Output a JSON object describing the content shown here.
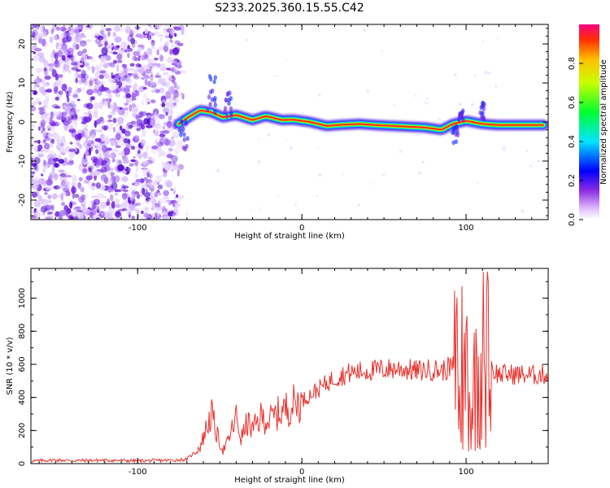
{
  "title": "S233.2025.360.15.55.C42",
  "spectrogram": {
    "type": "heatmap",
    "xlabel": "Height of straight line (km)",
    "ylabel": "Frequency (Hz)",
    "xlim": [
      -165,
      150
    ],
    "ylim": [
      -25,
      25
    ],
    "x_ticks": [
      -100,
      0,
      100
    ],
    "y_ticks": [
      20,
      10,
      0,
      -10,
      -20
    ],
    "ridge": {
      "x": [
        -75,
        -68,
        -62,
        -55,
        -48,
        -40,
        -30,
        -22,
        -12,
        -5,
        5,
        15,
        25,
        35,
        45,
        55,
        65,
        75,
        85,
        92,
        100,
        110,
        120,
        130,
        140,
        148
      ],
      "y": [
        -0.5,
        1.5,
        3,
        2.5,
        1.2,
        1.8,
        0.5,
        1.5,
        0.5,
        0.6,
        0,
        -1.0,
        -0.7,
        -0.5,
        -0.8,
        -1.0,
        -1.2,
        -1.4,
        -2.0,
        -0.5,
        0.3,
        -0.5,
        -0.8,
        -0.8,
        -0.8,
        -0.8
      ]
    },
    "colorbar": {
      "label": "Normalized spectral amplitude",
      "ticks": [
        "0.0",
        "0.2",
        "0.4",
        "0.6",
        "0.8"
      ],
      "range": [
        0,
        1
      ]
    }
  },
  "chart_data": {
    "type": "line",
    "title": "S233.2025.360.15.55.C42",
    "xlabel": "Height of straight line (km)",
    "ylabel": "SNR (10 * v/v)",
    "xlim": [
      -165,
      150
    ],
    "ylim": [
      0,
      1180
    ],
    "x_ticks": [
      -100,
      0,
      100
    ],
    "y_ticks": [
      0,
      200,
      400,
      600,
      800,
      1000
    ],
    "color": "#e8302c",
    "x": [
      -165,
      -150,
      -140,
      -120,
      -100,
      -80,
      -70,
      -62,
      -58,
      -55,
      -52,
      -48,
      -45,
      -40,
      -37,
      -33,
      -30,
      -25,
      -20,
      -15,
      -10,
      -5,
      0,
      10,
      20,
      30,
      40,
      50,
      60,
      70,
      80,
      85,
      90,
      95,
      97,
      100,
      103,
      106,
      110,
      113,
      115,
      120,
      130,
      140,
      150
    ],
    "y": [
      15,
      22,
      18,
      20,
      17,
      20,
      25,
      100,
      220,
      300,
      180,
      80,
      130,
      280,
      150,
      250,
      200,
      280,
      260,
      300,
      330,
      360,
      380,
      450,
      520,
      550,
      560,
      570,
      575,
      560,
      570,
      560,
      580,
      600,
      150,
      700,
      300,
      560,
      600,
      200,
      570,
      540,
      540,
      535,
      540
    ]
  },
  "colors": {
    "axis": "#000000",
    "line": "#e8302c"
  }
}
